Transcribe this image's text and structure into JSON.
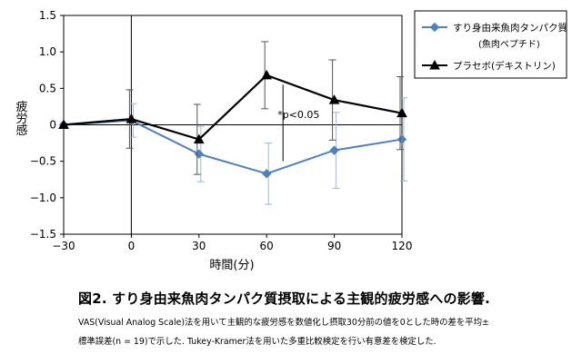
{
  "chart_data": {
    "type": "line",
    "title": "図2. すり身由来魚肉タンパク質摂取による主観的疲労感への影響.",
    "xlabel": "時間(分)",
    "ylabel": "疲労感",
    "x": [
      -30,
      0,
      30,
      60,
      90,
      120
    ],
    "x_ticks": [
      "−30",
      "0",
      "30",
      "60",
      "90",
      "120"
    ],
    "xlim": [
      -30,
      120
    ],
    "ylim": [
      -1.5,
      1.5
    ],
    "y_ticks": [
      "1.5",
      "1.0",
      "0.5",
      "0",
      "−0.5",
      "−1.0",
      "−1.5"
    ],
    "y_tick_values": [
      1.5,
      1.0,
      0.5,
      0,
      -0.5,
      -1.0,
      -1.5
    ],
    "legend_position": "top-right",
    "series": [
      {
        "name": "すり身由来魚肉タンパク質",
        "name_line2": "(魚肉ペプチド)",
        "color": "#4f81bd",
        "marker": "diamond",
        "values": [
          0.0,
          0.06,
          -0.4,
          -0.67,
          -0.35,
          -0.2
        ],
        "errors": [
          0.0,
          0.23,
          0.38,
          0.42,
          0.52,
          0.57
        ]
      },
      {
        "name": "プラセボ(デキストリン)",
        "color": "#000000",
        "marker": "triangle",
        "values": [
          0.0,
          0.08,
          -0.2,
          0.68,
          0.34,
          0.16
        ],
        "errors": [
          0.0,
          0.4,
          0.48,
          0.46,
          0.55,
          0.5
        ]
      }
    ],
    "annotations": [
      {
        "text": "*p<0.05",
        "x": 60
      }
    ]
  },
  "caption": {
    "title": "図2. すり身由来魚肉タンパク質摂取による主観的疲労感への影響.",
    "note_line1": "VAS(Visual Analog Scale)法を用いて主観的な疲労感を数値化し摂取30分前の値を0とした時の差を平均±",
    "note_line2": "標準誤差(n = 19)で示した. Tukey-Kramer法を用いた多重比較検定を行い有意差を検定した."
  }
}
